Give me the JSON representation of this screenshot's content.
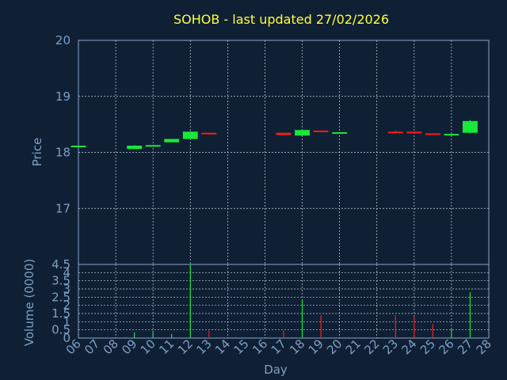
{
  "chart_data": {
    "type": "candlestick",
    "title": "SOHOB - last updated 27/02/2026",
    "xlabel": "Day",
    "ylabel_price": "Price",
    "ylabel_volume": "Volume (0000)",
    "x_ticks": [
      "06",
      "07",
      "08",
      "09",
      "10",
      "11",
      "12",
      "13",
      "14",
      "15",
      "16",
      "17",
      "18",
      "19",
      "20",
      "21",
      "22",
      "23",
      "24",
      "25",
      "26",
      "27",
      "28"
    ],
    "price_ticks": [
      "20",
      "19",
      "18",
      "17"
    ],
    "price_ylim": [
      16.0,
      20.0
    ],
    "volume_ticks": [
      "4.5",
      "4",
      "3.5",
      "3",
      "2.5",
      "2",
      "1.5",
      "1",
      "0.5",
      "0"
    ],
    "volume_ylim": [
      0,
      4.5
    ],
    "grid": true,
    "colors": {
      "background": "#0f2035",
      "up": "#18e83a",
      "down": "#ff1a1a",
      "title": "#ffff3a",
      "axis_text": "#7f9fc0"
    },
    "candles": [
      {
        "day": "06",
        "open": 18.11,
        "close": 18.12,
        "high": 18.12,
        "low": 18.11,
        "volume": 0.05
      },
      {
        "day": "09",
        "open": 18.06,
        "close": 18.12,
        "high": 18.13,
        "low": 18.06,
        "volume": 0.35
      },
      {
        "day": "10",
        "open": 18.11,
        "close": 18.13,
        "high": 18.13,
        "low": 18.11,
        "volume": 0.45
      },
      {
        "day": "11",
        "open": 18.18,
        "close": 18.24,
        "high": 18.24,
        "low": 18.18,
        "volume": 0.25
      },
      {
        "day": "12",
        "open": 18.24,
        "close": 18.37,
        "high": 18.38,
        "low": 18.24,
        "volume": 4.5
      },
      {
        "day": "13",
        "open": 18.35,
        "close": 18.33,
        "high": 18.35,
        "low": 18.33,
        "volume": 0.45
      },
      {
        "day": "17",
        "open": 18.35,
        "close": 18.31,
        "high": 18.35,
        "low": 18.31,
        "volume": 0.45
      },
      {
        "day": "18",
        "open": 18.3,
        "close": 18.4,
        "high": 18.4,
        "low": 18.3,
        "volume": 2.35
      },
      {
        "day": "19",
        "open": 18.39,
        "close": 18.37,
        "high": 18.39,
        "low": 18.37,
        "volume": 1.4
      },
      {
        "day": "20",
        "open": 18.34,
        "close": 18.36,
        "high": 18.36,
        "low": 18.34,
        "volume": 0.05
      },
      {
        "day": "23",
        "open": 18.37,
        "close": 18.35,
        "high": 18.39,
        "low": 18.34,
        "volume": 1.4
      },
      {
        "day": "24",
        "open": 18.37,
        "close": 18.34,
        "high": 18.37,
        "low": 18.34,
        "volume": 1.3
      },
      {
        "day": "25",
        "open": 18.34,
        "close": 18.32,
        "high": 18.34,
        "low": 18.32,
        "volume": 0.85
      },
      {
        "day": "26",
        "open": 18.31,
        "close": 18.33,
        "high": 18.33,
        "low": 18.31,
        "volume": 0.55
      },
      {
        "day": "27",
        "open": 18.35,
        "close": 18.56,
        "high": 18.58,
        "low": 18.34,
        "volume": 2.8
      }
    ]
  }
}
